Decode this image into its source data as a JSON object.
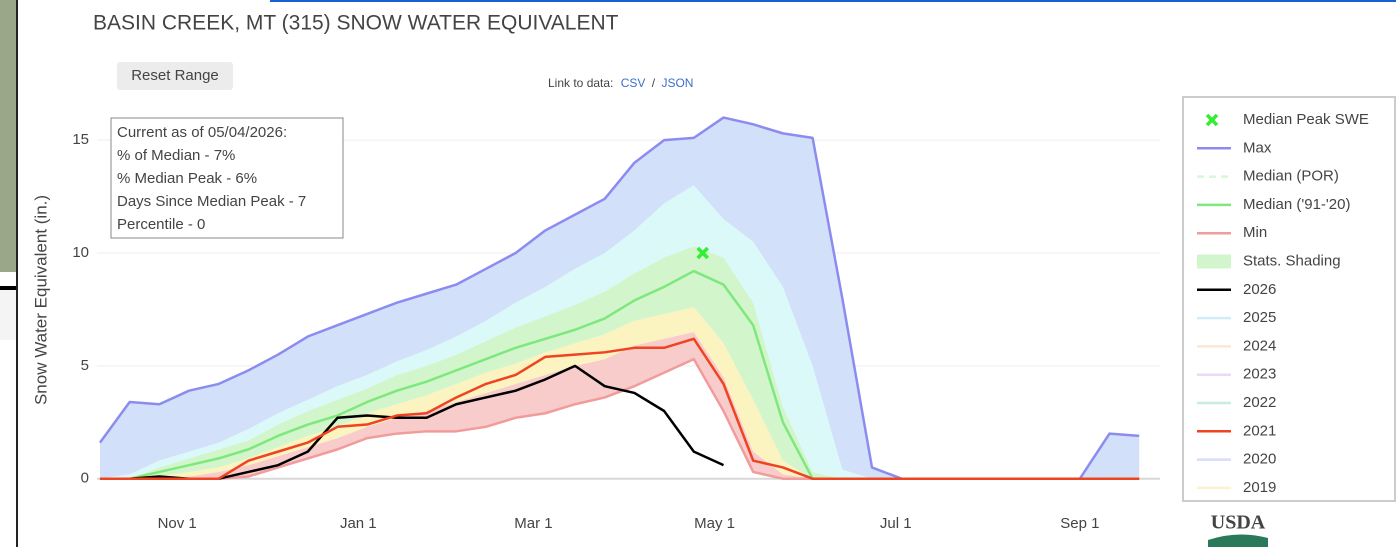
{
  "chart_data": {
    "type": "line",
    "title": "BASIN CREEK, MT (315) SNOW WATER EQUIVALENT",
    "reset_button": "Reset Range",
    "data_links": {
      "label": "Link to data:",
      "csv": "CSV",
      "separator": "/",
      "json": "JSON"
    },
    "y_label": "Snow Water Equivalent (in.)",
    "annotation": [
      "Current as of 05/04/2026:",
      "% of Median - 7%",
      "% Median Peak - 6%",
      "Days Since Median Peak - 7",
      "Percentile - 0"
    ],
    "logo": "USDA",
    "xlim": [
      4,
      362
    ],
    "ylim": [
      -0.5,
      17
    ],
    "xticks": [
      {
        "value": 31,
        "label": "Nov 1"
      },
      {
        "value": 92,
        "label": "Jan 1"
      },
      {
        "value": 151,
        "label": "Mar 1"
      },
      {
        "value": 212,
        "label": "May 1"
      },
      {
        "value": 273,
        "label": "Jul 1"
      },
      {
        "value": 335,
        "label": "Sep 1"
      }
    ],
    "yticks": [
      0,
      5,
      10,
      15
    ],
    "grid": true,
    "legend_position": "right",
    "x": [
      5,
      15,
      25,
      35,
      45,
      55,
      65,
      75,
      85,
      95,
      105,
      115,
      125,
      135,
      145,
      155,
      165,
      175,
      185,
      195,
      205,
      215,
      225,
      235,
      245,
      255,
      265,
      275,
      285,
      295,
      305,
      315,
      325,
      335,
      345,
      355
    ],
    "peak_marker": {
      "name": "Median Peak SWE",
      "color": "#33ee33",
      "x": 208,
      "y": 10
    },
    "series": [
      {
        "name": "Max",
        "color": "#8c8cf0",
        "visible": true,
        "values": [
          1.6,
          3.4,
          3.3,
          3.9,
          4.2,
          4.8,
          5.5,
          6.3,
          6.8,
          7.3,
          7.8,
          8.2,
          8.6,
          9.3,
          10,
          11,
          11.7,
          12.4,
          14,
          15,
          15.1,
          16,
          15.7,
          15.3,
          15.1,
          8,
          0.5,
          0,
          0,
          0,
          0,
          0,
          0,
          0,
          2,
          1.9
        ]
      },
      {
        "name": "Median (POR)",
        "color": "#9ef09e",
        "visible": false,
        "dash": true
      },
      {
        "name": "Median ('91-'20)",
        "color": "#7ee87e",
        "visible": true,
        "values": [
          0,
          0,
          0.3,
          0.6,
          0.9,
          1.3,
          1.9,
          2.4,
          2.8,
          3.4,
          3.9,
          4.3,
          4.8,
          5.3,
          5.8,
          6.2,
          6.6,
          7.1,
          7.9,
          8.5,
          9.2,
          8.6,
          6.8,
          2.5,
          0,
          0,
          0,
          0,
          0,
          0,
          0,
          0,
          0,
          0,
          0,
          0
        ]
      },
      {
        "name": "Min",
        "color": "#f29b9b",
        "visible": true,
        "values": [
          0,
          0,
          0,
          0,
          0,
          0.1,
          0.5,
          0.9,
          1.3,
          1.8,
          2,
          2.1,
          2.1,
          2.3,
          2.7,
          2.9,
          3.3,
          3.6,
          4.1,
          4.7,
          5.3,
          3,
          0.3,
          0,
          0,
          0,
          0,
          0,
          0,
          0,
          0,
          0,
          0,
          0,
          0,
          0
        ]
      },
      {
        "name": "Stats. Shading",
        "kind": "shading",
        "color": "#d3f5cc",
        "visible": true,
        "colors": [
          "#f9cccc",
          "#fbf3c0",
          "#d3f5cc",
          "#dbf9f9",
          "#d2e0f9"
        ],
        "curves": [
          [
            0,
            0,
            0,
            0.1,
            0.3,
            0.6,
            1,
            1.4,
            1.8,
            2.3,
            2.7,
            3,
            3.4,
            3.8,
            4.2,
            4.6,
            5,
            5.3,
            5.9,
            6.2,
            6.5,
            4.5,
            1.2,
            0.2,
            0,
            0,
            0,
            0,
            0,
            0,
            0,
            0,
            0,
            0,
            0,
            0
          ],
          [
            0,
            0,
            0.1,
            0.3,
            0.5,
            0.9,
            1.4,
            1.9,
            2.3,
            2.9,
            3.3,
            3.7,
            4.2,
            4.7,
            5.1,
            5.6,
            6,
            6.4,
            7,
            7.3,
            7.6,
            6,
            3.5,
            0.8,
            0,
            0,
            0,
            0,
            0,
            0,
            0,
            0,
            0,
            0,
            0,
            0
          ],
          [
            0,
            0,
            0.5,
            0.9,
            1.3,
            1.7,
            2.4,
            3,
            3.5,
            4,
            4.6,
            5,
            5.5,
            6.1,
            6.7,
            7.2,
            7.7,
            8.3,
            9.1,
            9.8,
            10.3,
            9.8,
            7.8,
            3.2,
            0.3,
            0,
            0,
            0,
            0,
            0,
            0,
            0,
            0,
            0,
            0,
            0
          ],
          [
            0,
            0.2,
            0.8,
            1.2,
            1.6,
            2.2,
            2.9,
            3.5,
            4.1,
            4.6,
            5.2,
            5.7,
            6.3,
            7,
            7.8,
            8.5,
            9.3,
            10,
            11,
            12.2,
            13,
            11.5,
            10.5,
            8.5,
            5,
            0.4,
            0,
            0,
            0,
            0,
            0,
            0,
            0,
            0,
            0,
            0
          ]
        ]
      },
      {
        "name": "2026",
        "color": "#000000",
        "visible": true,
        "values": [
          0,
          0,
          0.1,
          0,
          0,
          0.3,
          0.6,
          1.2,
          2.7,
          2.8,
          2.7,
          2.7,
          3.3,
          3.6,
          3.9,
          4.4,
          5,
          4.1,
          3.8,
          3,
          1.2,
          0.6,
          null,
          null,
          null,
          null,
          null,
          null,
          null,
          null,
          null,
          null,
          null,
          null,
          null,
          null
        ]
      },
      {
        "name": "2025",
        "color": "#8fd3f8",
        "visible": false
      },
      {
        "name": "2024",
        "color": "#f8c28e",
        "visible": false
      },
      {
        "name": "2023",
        "color": "#c9a8f0",
        "visible": false
      },
      {
        "name": "2022",
        "color": "#74d3aa",
        "visible": false
      },
      {
        "name": "2021",
        "color": "#ee4422",
        "visible": true,
        "values": [
          0,
          0,
          0,
          0,
          0,
          0.8,
          1.2,
          1.6,
          2.3,
          2.4,
          2.8,
          2.9,
          3.6,
          4.2,
          4.6,
          5.4,
          5.5,
          5.6,
          5.8,
          5.8,
          6.2,
          4.2,
          0.8,
          0.5,
          0,
          0,
          0,
          0,
          0,
          0,
          0,
          0,
          0,
          0,
          0,
          0
        ]
      },
      {
        "name": "2020",
        "color": "#a2a9f2",
        "visible": false
      },
      {
        "name": "2019",
        "color": "#f5e08e",
        "visible": false
      }
    ]
  }
}
